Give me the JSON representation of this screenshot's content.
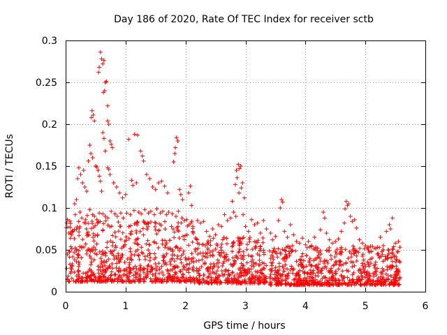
{
  "chart_data": {
    "type": "scatter",
    "title": "Day 186 of 2020, Rate Of TEC Index for receiver sctb",
    "xlabel": "GPS time / hours",
    "ylabel": "ROTI / TECUs",
    "xlim": [
      0,
      6
    ],
    "ylim": [
      0,
      0.3
    ],
    "xticks": [
      0,
      1,
      2,
      3,
      4,
      5,
      6
    ],
    "xtick_labels": [
      "0",
      "1",
      "2",
      "3",
      "4",
      "5",
      "6"
    ],
    "yticks": [
      0,
      0.05,
      0.1,
      0.15,
      0.2,
      0.25,
      0.3
    ],
    "ytick_labels": [
      "0",
      "0.05",
      "0.1",
      "0.15",
      "0.2",
      "0.25",
      "0.3"
    ],
    "grid": true,
    "marker": "+",
    "color": "#ff0000",
    "series": [
      {
        "name": "ROTI",
        "points": [
          [
            0.58,
            0.286
          ],
          [
            0.6,
            0.278
          ],
          [
            0.62,
            0.272
          ],
          [
            0.56,
            0.268
          ],
          [
            0.64,
            0.276
          ],
          [
            0.55,
            0.262
          ],
          [
            0.66,
            0.25
          ],
          [
            0.68,
            0.251
          ],
          [
            0.65,
            0.24
          ],
          [
            0.63,
            0.238
          ],
          [
            0.7,
            0.222
          ],
          [
            0.44,
            0.216
          ],
          [
            0.46,
            0.211
          ],
          [
            0.48,
            0.204
          ],
          [
            0.43,
            0.208
          ],
          [
            0.7,
            0.204
          ],
          [
            0.72,
            0.2
          ],
          [
            0.62,
            0.19
          ],
          [
            0.74,
            0.18
          ],
          [
            0.76,
            0.176
          ],
          [
            0.64,
            0.183
          ],
          [
            0.66,
            0.168
          ],
          [
            0.78,
            0.172
          ],
          [
            0.4,
            0.175
          ],
          [
            0.42,
            0.165
          ],
          [
            0.38,
            0.156
          ],
          [
            0.45,
            0.16
          ],
          [
            1.15,
            0.188
          ],
          [
            1.2,
            0.187
          ],
          [
            1.05,
            0.182
          ],
          [
            1.25,
            0.168
          ],
          [
            1.28,
            0.162
          ],
          [
            1.3,
            0.156
          ],
          [
            1.85,
            0.184
          ],
          [
            1.87,
            0.18
          ],
          [
            1.83,
            0.172
          ],
          [
            1.82,
            0.165
          ],
          [
            1.8,
            0.155
          ],
          [
            2.88,
            0.152
          ],
          [
            2.9,
            0.147
          ],
          [
            2.92,
            0.15
          ],
          [
            2.85,
            0.145
          ],
          [
            2.86,
            0.136
          ],
          [
            2.95,
            0.13
          ],
          [
            2.93,
            0.124
          ],
          [
            2.83,
            0.128
          ],
          [
            2.89,
            0.118
          ],
          [
            2.78,
            0.108
          ],
          [
            2.98,
            0.112
          ],
          [
            3.6,
            0.11
          ],
          [
            3.62,
            0.107
          ],
          [
            3.58,
            0.1
          ],
          [
            4.68,
            0.108
          ],
          [
            4.7,
            0.103
          ],
          [
            4.72,
            0.105
          ],
          [
            4.66,
            0.099
          ],
          [
            4.75,
            0.09
          ],
          [
            4.3,
            0.095
          ],
          [
            4.32,
            0.088
          ],
          [
            5.45,
            0.088
          ],
          [
            5.4,
            0.08
          ],
          [
            5.42,
            0.075
          ],
          [
            5.35,
            0.072
          ],
          [
            5.55,
            0.06
          ],
          [
            5.5,
            0.058
          ],
          [
            5.25,
            0.065
          ],
          [
            0.15,
            0.105
          ],
          [
            0.18,
            0.11
          ],
          [
            0.2,
            0.135
          ],
          [
            0.22,
            0.148
          ],
          [
            0.25,
            0.14
          ],
          [
            0.28,
            0.13
          ],
          [
            0.3,
            0.145
          ],
          [
            0.32,
            0.125
          ],
          [
            0.35,
            0.12
          ],
          [
            0.5,
            0.15
          ],
          [
            0.52,
            0.149
          ],
          [
            0.54,
            0.145
          ],
          [
            0.56,
            0.138
          ],
          [
            0.58,
            0.132
          ],
          [
            0.6,
            0.12
          ],
          [
            0.7,
            0.148
          ],
          [
            0.72,
            0.146
          ],
          [
            0.74,
            0.14
          ],
          [
            0.8,
            0.13
          ],
          [
            0.85,
            0.125
          ],
          [
            0.9,
            0.118
          ],
          [
            0.95,
            0.112
          ],
          [
            1.0,
            0.116
          ],
          [
            1.1,
            0.133
          ],
          [
            1.12,
            0.127
          ],
          [
            1.18,
            0.13
          ],
          [
            1.35,
            0.14
          ],
          [
            1.4,
            0.135
          ],
          [
            1.45,
            0.125
          ],
          [
            1.5,
            0.122
          ],
          [
            1.55,
            0.13
          ],
          [
            1.6,
            0.132
          ],
          [
            1.65,
            0.126
          ],
          [
            1.7,
            0.118
          ],
          [
            1.9,
            0.122
          ],
          [
            1.92,
            0.116
          ],
          [
            1.95,
            0.11
          ],
          [
            2.05,
            0.118
          ],
          [
            2.08,
            0.126
          ],
          [
            2.1,
            0.103
          ],
          [
            0.02,
            0.082
          ],
          [
            0.03,
            0.086
          ],
          [
            0.05,
            0.07
          ],
          [
            0.08,
            0.064
          ],
          [
            0.1,
            0.068
          ],
          [
            0.12,
            0.072
          ],
          [
            0.16,
            0.092
          ],
          [
            0.24,
            0.095
          ],
          [
            0.27,
            0.088
          ],
          [
            0.33,
            0.086
          ],
          [
            0.36,
            0.091
          ],
          [
            0.4,
            0.098
          ],
          [
            0.45,
            0.092
          ],
          [
            0.48,
            0.09
          ],
          [
            0.52,
            0.086
          ],
          [
            0.56,
            0.094
          ],
          [
            0.62,
            0.093
          ],
          [
            0.66,
            0.09
          ],
          [
            0.7,
            0.088
          ],
          [
            0.76,
            0.096
          ],
          [
            0.82,
            0.093
          ],
          [
            0.86,
            0.09
          ],
          [
            0.92,
            0.094
          ],
          [
            0.96,
            0.088
          ],
          [
            1.02,
            0.094
          ],
          [
            1.08,
            0.092
          ],
          [
            1.14,
            0.097
          ],
          [
            1.22,
            0.095
          ],
          [
            1.26,
            0.093
          ],
          [
            1.32,
            0.098
          ],
          [
            1.38,
            0.094
          ],
          [
            1.42,
            0.096
          ],
          [
            1.48,
            0.092
          ],
          [
            1.52,
            0.099
          ],
          [
            1.58,
            0.094
          ],
          [
            1.62,
            0.096
          ],
          [
            1.68,
            0.092
          ],
          [
            1.72,
            0.095
          ],
          [
            1.78,
            0.093
          ],
          [
            1.84,
            0.09
          ],
          [
            1.88,
            0.096
          ],
          [
            1.94,
            0.088
          ],
          [
            1.98,
            0.085
          ],
          [
            2.02,
            0.086
          ],
          [
            2.06,
            0.08
          ],
          [
            2.12,
            0.078
          ],
          [
            2.2,
            0.085
          ],
          [
            2.25,
            0.082
          ],
          [
            2.3,
            0.084
          ],
          [
            2.35,
            0.072
          ],
          [
            2.4,
            0.066
          ],
          [
            2.45,
            0.075
          ],
          [
            2.5,
            0.068
          ],
          [
            2.55,
            0.08
          ],
          [
            2.6,
            0.078
          ],
          [
            2.65,
            0.092
          ],
          [
            2.7,
            0.085
          ],
          [
            2.75,
            0.088
          ],
          [
            2.8,
            0.095
          ],
          [
            2.84,
            0.09
          ],
          [
            2.96,
            0.092
          ],
          [
            3.0,
            0.078
          ],
          [
            3.05,
            0.072
          ],
          [
            3.1,
            0.086
          ],
          [
            3.15,
            0.08
          ],
          [
            3.2,
            0.082
          ],
          [
            3.25,
            0.07
          ],
          [
            3.3,
            0.085
          ],
          [
            3.35,
            0.075
          ],
          [
            3.42,
            0.07
          ],
          [
            3.45,
            0.062
          ],
          [
            3.5,
            0.066
          ],
          [
            3.55,
            0.085
          ],
          [
            3.65,
            0.072
          ],
          [
            3.7,
            0.065
          ],
          [
            3.75,
            0.08
          ],
          [
            3.8,
            0.068
          ],
          [
            3.85,
            0.06
          ],
          [
            3.9,
            0.058
          ],
          [
            3.95,
            0.064
          ],
          [
            4.0,
            0.056
          ],
          [
            4.05,
            0.06
          ],
          [
            4.1,
            0.055
          ],
          [
            4.15,
            0.065
          ],
          [
            4.2,
            0.052
          ],
          [
            4.25,
            0.074
          ],
          [
            4.35,
            0.07
          ],
          [
            4.4,
            0.062
          ],
          [
            4.45,
            0.058
          ],
          [
            4.5,
            0.06
          ],
          [
            4.55,
            0.063
          ],
          [
            4.6,
            0.072
          ],
          [
            4.65,
            0.082
          ],
          [
            4.78,
            0.084
          ],
          [
            4.82,
            0.086
          ],
          [
            4.85,
            0.076
          ],
          [
            4.9,
            0.062
          ],
          [
            4.95,
            0.058
          ],
          [
            5.0,
            0.055
          ],
          [
            5.05,
            0.05
          ],
          [
            5.1,
            0.048
          ],
          [
            5.15,
            0.052
          ],
          [
            5.2,
            0.045
          ],
          [
            5.3,
            0.055
          ],
          [
            5.38,
            0.05
          ],
          [
            5.48,
            0.042
          ]
        ]
      }
    ],
    "dense_bands": [
      {
        "x_range": [
          0.0,
          2.15
        ],
        "y_range": [
          0.012,
          0.085
        ]
      },
      {
        "x_range": [
          2.15,
          3.35
        ],
        "y_range": [
          0.01,
          0.065
        ]
      },
      {
        "x_range": [
          3.4,
          5.58
        ],
        "y_range": [
          0.008,
          0.055
        ]
      }
    ]
  }
}
